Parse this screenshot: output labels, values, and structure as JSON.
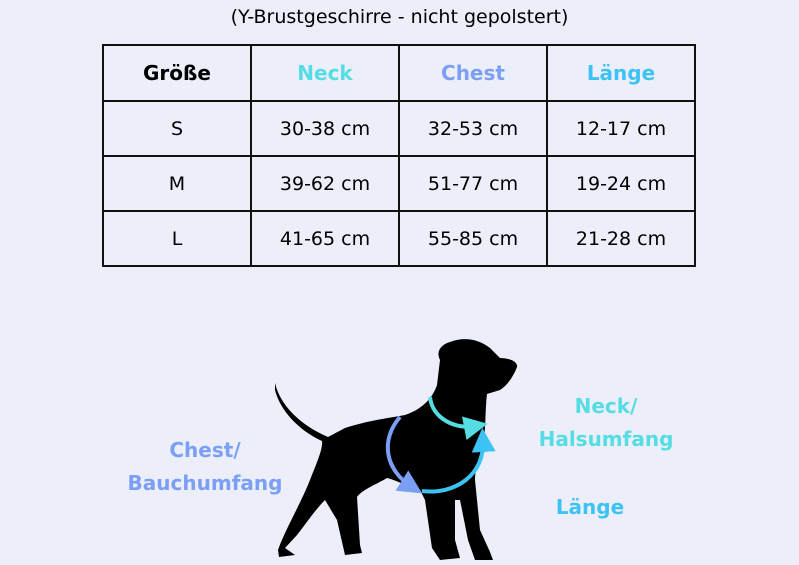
{
  "title": "(Y-Brustgeschirre - nicht gepolstert)",
  "colors": {
    "neck": "#56dde3",
    "chest": "#7b9ff4",
    "laenge": "#3cc3f3",
    "background": "#eceef9"
  },
  "table": {
    "headers": [
      "Größe",
      "Neck",
      "Chest",
      "Länge"
    ],
    "rows": [
      [
        "S",
        "30-38 cm",
        "32-53 cm",
        "12-17 cm"
      ],
      [
        "M",
        "39-62 cm",
        "51-77 cm",
        "19-24 cm"
      ],
      [
        "L",
        "41-65 cm",
        "55-85 cm",
        "21-28 cm"
      ]
    ]
  },
  "diagram": {
    "chest_label_1": "Chest/",
    "chest_label_2": "Bauchumfang",
    "neck_label_1": "Neck/",
    "neck_label_2": "Halsumfang",
    "laenge_label": "Länge"
  }
}
